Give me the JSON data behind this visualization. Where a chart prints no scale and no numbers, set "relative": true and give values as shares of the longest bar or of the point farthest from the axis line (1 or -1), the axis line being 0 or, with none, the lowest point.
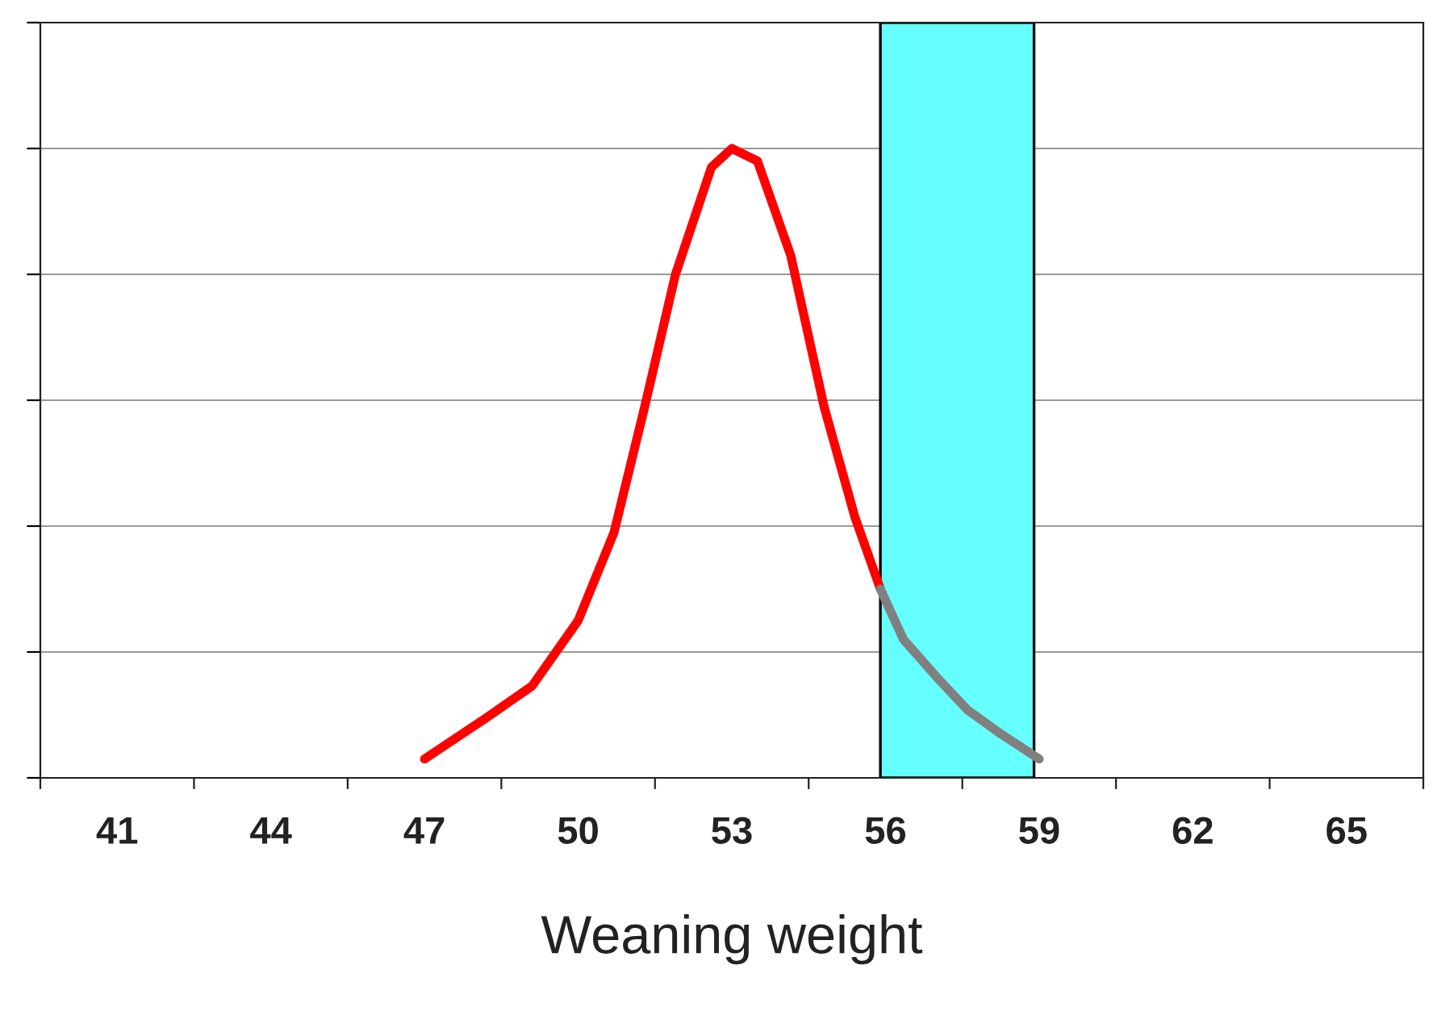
{
  "chart_data": {
    "type": "line",
    "xlabel": "Weaning weight",
    "relative": true,
    "xlim": [
      39.5,
      66.5
    ],
    "xticks": [
      {
        "value": 39.5,
        "label": null
      },
      41,
      {
        "value": 42.5,
        "label": null
      },
      44,
      {
        "value": 45.5,
        "label": null
      },
      47,
      {
        "value": 48.5,
        "label": null
      },
      50,
      {
        "value": 51.5,
        "label": null
      },
      53,
      {
        "value": 54.5,
        "label": null
      },
      56,
      {
        "value": 57.5,
        "label": null
      },
      59,
      {
        "value": 60.5,
        "label": null
      },
      62,
      {
        "value": 63.5,
        "label": null
      },
      65,
      {
        "value": 66.5,
        "label": null
      }
    ],
    "grid": "y",
    "series": [
      {
        "color": "#ff0000",
        "x": [
          47,
          48.2,
          49.1,
          50.0,
          50.7,
          51.3,
          51.9,
          52.6,
          53,
          53.5,
          54.15,
          54.8,
          55.4,
          55.9
        ],
        "values": [
          0.03,
          0.095,
          0.146,
          0.25,
          0.39,
          0.59,
          0.8,
          0.97,
          1,
          0.98,
          0.83,
          0.59,
          0.415,
          0.3
        ]
      },
      {
        "color": "#808080",
        "x": [
          55.9,
          56.35,
          57.0,
          57.6,
          58.25,
          59.0
        ],
        "values": [
          0.3,
          0.22,
          0.16,
          0.108,
          0.07,
          0.03
        ]
      }
    ],
    "bands": [
      {
        "axis": "x",
        "from": 55.9,
        "to": 58.9,
        "color": "#66ffff"
      }
    ]
  }
}
